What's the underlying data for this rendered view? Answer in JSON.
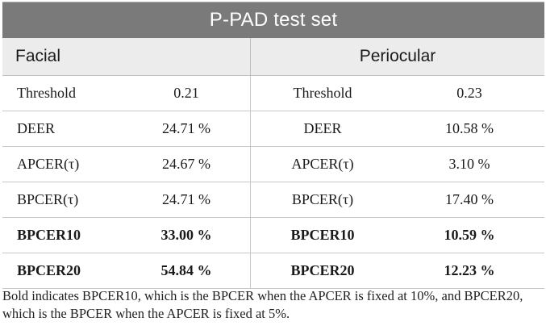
{
  "title": "P-PAD test set",
  "headers": {
    "left": "Facial",
    "right": "Periocular"
  },
  "rows": [
    {
      "m1": "Threshold",
      "v1": "0.21",
      "m2": "Threshold",
      "v2": "0.23",
      "bold": false
    },
    {
      "m1": "DEER",
      "v1": "24.71 %",
      "m2": "DEER",
      "v2": "10.58 %",
      "bold": false
    },
    {
      "m1": "APCER(τ)",
      "v1": "24.67 %",
      "m2": "APCER(τ)",
      "v2": "3.10 %",
      "bold": false
    },
    {
      "m1": "BPCER(τ)",
      "v1": "24.71 %",
      "m2": "BPCER(τ)",
      "v2": "17.40 %",
      "bold": false
    },
    {
      "m1": "BPCER10",
      "v1": "33.00 %",
      "m2": "BPCER10",
      "v2": "10.59 %",
      "bold": true
    },
    {
      "m1": "BPCER20",
      "v1": "54.84 %",
      "m2": "BPCER20",
      "v2": "12.23 %",
      "bold": true
    }
  ],
  "footnote": "Bold indicates BPCER10, which is the BPCER when the APCER is fixed at 10%, and BPCER20, which is the BPCER when the APCER is fixed at 5%."
}
